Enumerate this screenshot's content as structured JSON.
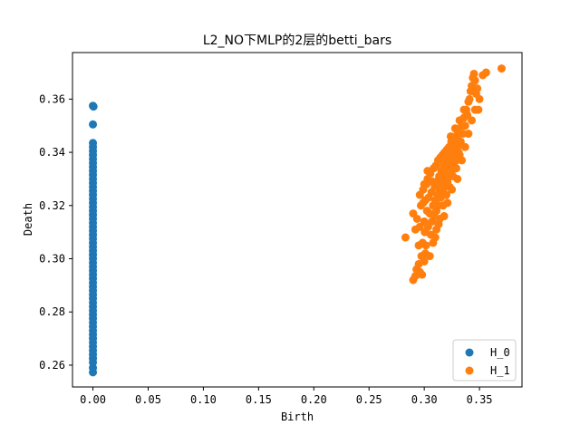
{
  "chart_data": {
    "type": "scatter",
    "title": "L2_NO下MLP的2层的betti_bars",
    "xlabel": "Birth",
    "ylabel": "Death",
    "xlim": [
      -0.0185,
      0.3885
    ],
    "ylim": [
      0.2518,
      0.3775
    ],
    "xticks": [
      0.0,
      0.05,
      0.1,
      0.15,
      0.2,
      0.25,
      0.3,
      0.35
    ],
    "xtick_labels": [
      "0.00",
      "0.05",
      "0.10",
      "0.15",
      "0.20",
      "0.25",
      "0.30",
      "0.35"
    ],
    "yticks": [
      0.26,
      0.28,
      0.3,
      0.32,
      0.34,
      0.36
    ],
    "ytick_labels": [
      "0.26",
      "0.28",
      "0.30",
      "0.32",
      "0.34",
      "0.36"
    ],
    "grid": false,
    "legend_position": "lower-right",
    "series": [
      {
        "name": "H_0",
        "color": "#1f77b4",
        "points": [
          [
            0.0,
            0.2573
          ],
          [
            0.0,
            0.259
          ],
          [
            0.0,
            0.261
          ],
          [
            0.0,
            0.2625
          ],
          [
            0.0,
            0.264
          ],
          [
            0.0,
            0.2655
          ],
          [
            0.0,
            0.267
          ],
          [
            0.0,
            0.2685
          ],
          [
            0.0,
            0.27
          ],
          [
            0.0,
            0.2715
          ],
          [
            0.0,
            0.273
          ],
          [
            0.0,
            0.2745
          ],
          [
            0.0,
            0.276
          ],
          [
            0.0,
            0.2775
          ],
          [
            0.0,
            0.279
          ],
          [
            0.0,
            0.2805
          ],
          [
            0.0,
            0.282
          ],
          [
            0.0,
            0.2835
          ],
          [
            0.0,
            0.285
          ],
          [
            0.0,
            0.2865
          ],
          [
            0.0,
            0.288
          ],
          [
            0.0,
            0.2895
          ],
          [
            0.0,
            0.291
          ],
          [
            0.0,
            0.2925
          ],
          [
            0.0,
            0.294
          ],
          [
            0.0,
            0.2955
          ],
          [
            0.0,
            0.297
          ],
          [
            0.0,
            0.2985
          ],
          [
            0.0,
            0.3
          ],
          [
            0.0,
            0.3015
          ],
          [
            0.0,
            0.303
          ],
          [
            0.0,
            0.3045
          ],
          [
            0.0,
            0.306
          ],
          [
            0.0,
            0.3075
          ],
          [
            0.0,
            0.309
          ],
          [
            0.0,
            0.3105
          ],
          [
            0.0,
            0.312
          ],
          [
            0.0,
            0.3135
          ],
          [
            0.0,
            0.315
          ],
          [
            0.0,
            0.3165
          ],
          [
            0.0,
            0.318
          ],
          [
            0.0,
            0.3195
          ],
          [
            0.0,
            0.321
          ],
          [
            0.0,
            0.3225
          ],
          [
            0.0,
            0.324
          ],
          [
            0.0,
            0.3255
          ],
          [
            0.0,
            0.327
          ],
          [
            0.0,
            0.3285
          ],
          [
            0.0,
            0.33
          ],
          [
            0.0,
            0.3315
          ],
          [
            0.0,
            0.333
          ],
          [
            0.0,
            0.3345
          ],
          [
            0.0,
            0.336
          ],
          [
            0.0,
            0.3375
          ],
          [
            0.0,
            0.339
          ],
          [
            0.0,
            0.3405
          ],
          [
            0.0,
            0.342
          ],
          [
            0.0,
            0.3435
          ],
          [
            0.0,
            0.3505
          ],
          [
            0.0,
            0.3575
          ],
          [
            0.0005,
            0.3572
          ]
        ]
      },
      {
        "name": "H_1",
        "color": "#ff7f0e",
        "points": [
          [
            0.283,
            0.308
          ],
          [
            0.29,
            0.292
          ],
          [
            0.292,
            0.2935
          ],
          [
            0.293,
            0.296
          ],
          [
            0.295,
            0.298
          ],
          [
            0.296,
            0.295
          ],
          [
            0.29,
            0.317
          ],
          [
            0.292,
            0.311
          ],
          [
            0.2935,
            0.315
          ],
          [
            0.295,
            0.305
          ],
          [
            0.296,
            0.312
          ],
          [
            0.297,
            0.32
          ],
          [
            0.2975,
            0.301
          ],
          [
            0.2985,
            0.306
          ],
          [
            0.299,
            0.326
          ],
          [
            0.3,
            0.314
          ],
          [
            0.3005,
            0.31
          ],
          [
            0.301,
            0.322
          ],
          [
            0.3015,
            0.305
          ],
          [
            0.302,
            0.328
          ],
          [
            0.3025,
            0.318
          ],
          [
            0.303,
            0.33
          ],
          [
            0.3035,
            0.312
          ],
          [
            0.304,
            0.323
          ],
          [
            0.305,
            0.317
          ],
          [
            0.3055,
            0.332
          ],
          [
            0.306,
            0.309
          ],
          [
            0.3065,
            0.325
          ],
          [
            0.307,
            0.314
          ],
          [
            0.3075,
            0.329
          ],
          [
            0.308,
            0.32
          ],
          [
            0.3085,
            0.334
          ],
          [
            0.309,
            0.316
          ],
          [
            0.3095,
            0.327
          ],
          [
            0.31,
            0.322
          ],
          [
            0.3105,
            0.335
          ],
          [
            0.311,
            0.318
          ],
          [
            0.3115,
            0.329
          ],
          [
            0.312,
            0.324
          ],
          [
            0.3125,
            0.337
          ],
          [
            0.313,
            0.32
          ],
          [
            0.3135,
            0.331
          ],
          [
            0.314,
            0.326
          ],
          [
            0.3145,
            0.338
          ],
          [
            0.315,
            0.323
          ],
          [
            0.3155,
            0.333
          ],
          [
            0.316,
            0.328
          ],
          [
            0.3165,
            0.339
          ],
          [
            0.317,
            0.325
          ],
          [
            0.3175,
            0.335
          ],
          [
            0.318,
            0.33
          ],
          [
            0.3185,
            0.34
          ],
          [
            0.319,
            0.327
          ],
          [
            0.3195,
            0.337
          ],
          [
            0.32,
            0.332
          ],
          [
            0.3205,
            0.341
          ],
          [
            0.321,
            0.329
          ],
          [
            0.3215,
            0.339
          ],
          [
            0.322,
            0.334
          ],
          [
            0.3225,
            0.342
          ],
          [
            0.323,
            0.331
          ],
          [
            0.3235,
            0.34
          ],
          [
            0.324,
            0.336
          ],
          [
            0.3245,
            0.344
          ],
          [
            0.325,
            0.333
          ],
          [
            0.3255,
            0.342
          ],
          [
            0.326,
            0.338
          ],
          [
            0.3265,
            0.345
          ],
          [
            0.327,
            0.335
          ],
          [
            0.3275,
            0.344
          ],
          [
            0.328,
            0.34
          ],
          [
            0.3285,
            0.346
          ],
          [
            0.329,
            0.337
          ],
          [
            0.3295,
            0.345
          ],
          [
            0.33,
            0.342
          ],
          [
            0.3305,
            0.348
          ],
          [
            0.331,
            0.34
          ],
          [
            0.332,
            0.347
          ],
          [
            0.333,
            0.344
          ],
          [
            0.334,
            0.35
          ],
          [
            0.335,
            0.347
          ],
          [
            0.336,
            0.353
          ],
          [
            0.337,
            0.35
          ],
          [
            0.338,
            0.356
          ],
          [
            0.339,
            0.354
          ],
          [
            0.34,
            0.359
          ],
          [
            0.341,
            0.36
          ],
          [
            0.342,
            0.363
          ],
          [
            0.343,
            0.365
          ],
          [
            0.344,
            0.368
          ],
          [
            0.345,
            0.363
          ],
          [
            0.346,
            0.367
          ],
          [
            0.347,
            0.362
          ],
          [
            0.348,
            0.364
          ],
          [
            0.349,
            0.356
          ],
          [
            0.35,
            0.36
          ],
          [
            0.345,
            0.3695
          ],
          [
            0.353,
            0.369
          ],
          [
            0.356,
            0.37
          ],
          [
            0.37,
            0.3715
          ],
          [
            0.305,
            0.301
          ],
          [
            0.308,
            0.306
          ],
          [
            0.311,
            0.311
          ],
          [
            0.314,
            0.315
          ],
          [
            0.317,
            0.32
          ],
          [
            0.32,
            0.324
          ],
          [
            0.323,
            0.327
          ],
          [
            0.326,
            0.331
          ],
          [
            0.329,
            0.334
          ],
          [
            0.332,
            0.339
          ],
          [
            0.301,
            0.302
          ],
          [
            0.3,
            0.299
          ],
          [
            0.298,
            0.294
          ],
          [
            0.31,
            0.308
          ],
          [
            0.313,
            0.313
          ],
          [
            0.318,
            0.316
          ],
          [
            0.321,
            0.321
          ],
          [
            0.325,
            0.326
          ],
          [
            0.33,
            0.33
          ],
          [
            0.334,
            0.337
          ],
          [
            0.337,
            0.342
          ],
          [
            0.34,
            0.347
          ],
          [
            0.343,
            0.352
          ],
          [
            0.346,
            0.356
          ],
          [
            0.324,
            0.346
          ],
          [
            0.328,
            0.349
          ],
          [
            0.332,
            0.352
          ],
          [
            0.336,
            0.356
          ],
          [
            0.3,
            0.328
          ],
          [
            0.303,
            0.333
          ],
          [
            0.299,
            0.321
          ],
          [
            0.296,
            0.324
          ]
        ]
      }
    ]
  }
}
